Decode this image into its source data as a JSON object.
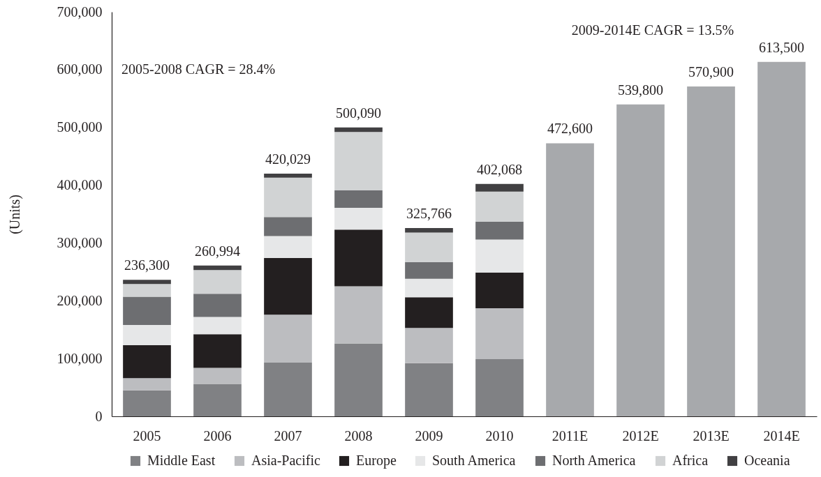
{
  "chart_data": {
    "type": "bar",
    "stacked": true,
    "ylabel": "(Units)",
    "categories": [
      "2005",
      "2006",
      "2007",
      "2008",
      "2009",
      "2010",
      "2011E",
      "2012E",
      "2013E",
      "2014E"
    ],
    "series": [
      {
        "name": "Middle East",
        "color": "#808184",
        "values": [
          45000,
          56000,
          93000,
          126000,
          92000,
          99000,
          null,
          null,
          null,
          null
        ]
      },
      {
        "name": "Asia-Pacific",
        "color": "#bcbdc0",
        "values": [
          21000,
          28000,
          83000,
          99000,
          61000,
          88000,
          null,
          null,
          null,
          null
        ]
      },
      {
        "name": "Europe",
        "color": "#231f20",
        "values": [
          57000,
          58000,
          98000,
          98000,
          53000,
          62000,
          null,
          null,
          null,
          null
        ]
      },
      {
        "name": "South America",
        "color": "#e6e7e8",
        "values": [
          35000,
          30000,
          38000,
          38000,
          32000,
          57000,
          null,
          null,
          null,
          null
        ]
      },
      {
        "name": "North America",
        "color": "#6d6e71",
        "values": [
          49000,
          40000,
          33000,
          30000,
          29000,
          31000,
          null,
          null,
          null,
          null
        ]
      },
      {
        "name": "Africa",
        "color": "#d1d3d4",
        "values": [
          22000,
          41000,
          68000,
          101000,
          51000,
          52000,
          null,
          null,
          null,
          null
        ]
      },
      {
        "name": "Oceania",
        "color": "#414042",
        "values": [
          7300,
          7994,
          7029,
          8090,
          7766,
          13068,
          null,
          null,
          null,
          null
        ]
      },
      {
        "color": "#a7a9ac",
        "values": [
          null,
          null,
          null,
          null,
          null,
          null,
          472600,
          539800,
          570900,
          613500
        ]
      }
    ],
    "totals": [
      "236,300",
      "260,994",
      "420,029",
      "500,090",
      "325,766",
      "402,068",
      "472,600",
      "539,800",
      "570,900",
      "613,500"
    ],
    "ylim": [
      0,
      700000
    ],
    "yticks": [
      0,
      {
        "value": 100000,
        "label": "100,000"
      },
      {
        "value": 200000,
        "label": "200,000"
      },
      {
        "value": 300000,
        "label": "300,000"
      },
      {
        "value": 400000,
        "label": "400,000"
      },
      {
        "value": 500000,
        "label": "500,000"
      },
      {
        "value": 600000,
        "label": "600,000"
      },
      {
        "value": 700000,
        "label": "700,000"
      }
    ],
    "legend": "bottom",
    "annotations": [
      "2005-2008 CAGR = 28.4%",
      "2009-2014E CAGR = 13.5%"
    ]
  }
}
